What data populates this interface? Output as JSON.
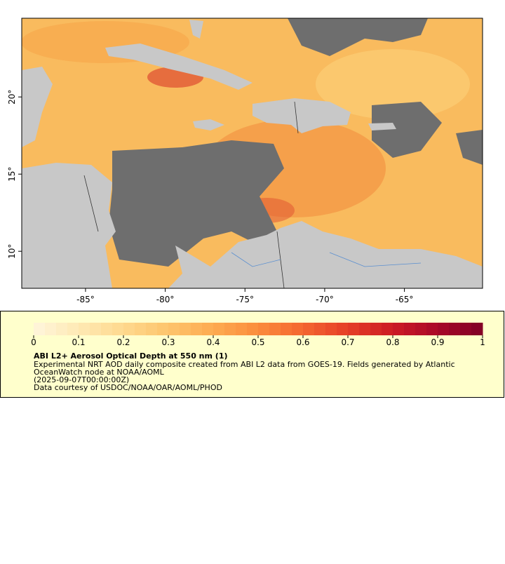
{
  "map": {
    "xlim": [
      -89,
      -60.1
    ],
    "ylim": [
      7.6,
      25.1
    ],
    "xticks": [
      {
        "value": -85,
        "label": "-85°"
      },
      {
        "value": -80,
        "label": "-80°"
      },
      {
        "value": -75,
        "label": "-75°"
      },
      {
        "value": -70,
        "label": "-70°"
      },
      {
        "value": -65,
        "label": "-65°"
      }
    ],
    "yticks": [
      {
        "value": 10,
        "label": "10°"
      },
      {
        "value": 15,
        "label": "15°"
      },
      {
        "value": 20,
        "label": "20°"
      }
    ]
  },
  "colorbar": {
    "range": [
      0,
      1
    ],
    "ticks": [
      0,
      0.1,
      0.2,
      0.3,
      0.4,
      0.5,
      0.6,
      0.7,
      0.8,
      0.9,
      1
    ],
    "colors": [
      "#fff6dc",
      "#fee9b4",
      "#fed98e",
      "#fdc46c",
      "#fdab50",
      "#fb8c3c",
      "#f46630",
      "#e53e27",
      "#cc1a24",
      "#a80828",
      "#800026"
    ],
    "steps": 40
  },
  "legend": {
    "title": "ABI L2+ Aerosol Optical Depth at 550 nm (1)",
    "lines": [
      "Experimental NRT AOD daily composite created from ABI L2 data from GOES-19. Fields generated by Atlantic",
      "OceanWatch node at NOAA/AOML",
      "(2025-09-07T00:00:00Z)",
      "Data courtesy of USDOC/NOAA/OAR/AOML/PHOD"
    ]
  }
}
